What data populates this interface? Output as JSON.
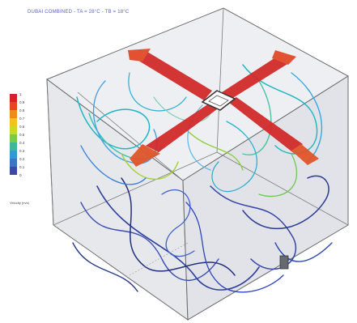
{
  "title": "DUBAI COMBINED - TA = 28°C - TB = 18°C",
  "legend": {
    "ticks": [
      "1",
      "0.9",
      "0.8",
      "0.7",
      "0.6",
      "0.5",
      "0.4",
      "0.3",
      "0.2",
      "0.1",
      "0"
    ],
    "colors": [
      "#d4202a",
      "#e4471f",
      "#f08a1c",
      "#f4c21c",
      "#c8d92a",
      "#7cc84a",
      "#3fb79a",
      "#2e9bd6",
      "#3f73c4",
      "#3a4aa6"
    ],
    "unit": "Velocity (m/s)"
  },
  "colors": {
    "title": "#5a5fd0",
    "jet": "#d22a2a",
    "room_face": "#e9eaee",
    "room_edge": "#6b6b6b"
  }
}
